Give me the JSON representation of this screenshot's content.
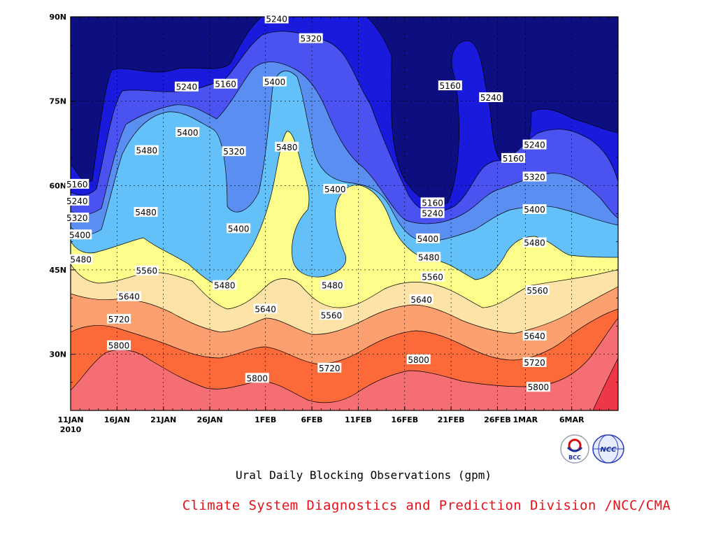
{
  "chart_data": {
    "type": "heatmap",
    "title": "Ural Daily Blocking Observations (gpm)",
    "credit": "Climate System Diagnostics and Prediction Division /NCC/CMA",
    "x_axis": {
      "start": "2010-01-11",
      "end": "2010-03-11",
      "tick_labels": [
        "11JAN\n2010",
        "16JAN",
        "21JAN",
        "26JAN",
        "1FEB",
        "6FEB",
        "11FEB",
        "16FEB",
        "21FEB",
        "26FEB",
        "1MAR",
        "6MAR"
      ],
      "tick_days": [
        0,
        5,
        10,
        15,
        21,
        26,
        31,
        36,
        41,
        46,
        49,
        54
      ]
    },
    "y_axis": {
      "range": [
        20,
        90
      ],
      "unit": "latitude",
      "tick_values": [
        30,
        45,
        60,
        75,
        90
      ],
      "tick_labels": [
        "30N",
        "45N",
        "60N",
        "75N",
        "90N"
      ]
    },
    "grid": true,
    "contour_levels": [
      5160,
      5240,
      5320,
      5400,
      5480,
      5560,
      5640,
      5720,
      5800
    ],
    "colors": [
      "#0d0f80",
      "#1a1adc",
      "#4a52f0",
      "#5a8ef0",
      "#63c0f8",
      "#fdfd8c",
      "#fde3a8",
      "#fda070",
      "#fd6a3a",
      "#f56e74",
      "#ee3848"
    ],
    "contour_labels": [
      {
        "text": "5160",
        "day": 0.7,
        "lat": 60.3
      },
      {
        "text": "5240",
        "day": 0.7,
        "lat": 57.3
      },
      {
        "text": "5320",
        "day": 0.7,
        "lat": 54.3
      },
      {
        "text": "5400",
        "day": 1.0,
        "lat": 51.3
      },
      {
        "text": "5480",
        "day": 1.1,
        "lat": 46.9
      },
      {
        "text": "5560",
        "day": 8.2,
        "lat": 44.9
      },
      {
        "text": "5640",
        "day": 6.3,
        "lat": 40.3
      },
      {
        "text": "5720",
        "day": 5.2,
        "lat": 36.3
      },
      {
        "text": "5800",
        "day": 5.2,
        "lat": 31.6
      },
      {
        "text": "5480",
        "day": 8.2,
        "lat": 66.3
      },
      {
        "text": "5480",
        "day": 8.1,
        "lat": 55.3
      },
      {
        "text": "5400",
        "day": 12.6,
        "lat": 69.5
      },
      {
        "text": "5240",
        "day": 12.5,
        "lat": 77.6
      },
      {
        "text": "5160",
        "day": 16.7,
        "lat": 78.1
      },
      {
        "text": "5320",
        "day": 17.6,
        "lat": 66.1
      },
      {
        "text": "5400",
        "day": 18.1,
        "lat": 52.4
      },
      {
        "text": "5480",
        "day": 16.6,
        "lat": 42.3
      },
      {
        "text": "5640",
        "day": 21.0,
        "lat": 38.1
      },
      {
        "text": "5800",
        "day": 20.1,
        "lat": 25.8
      },
      {
        "text": "5240",
        "day": 22.2,
        "lat": 89.7
      },
      {
        "text": "5320",
        "day": 25.9,
        "lat": 86.2
      },
      {
        "text": "5400",
        "day": 22.0,
        "lat": 78.5
      },
      {
        "text": "5480",
        "day": 23.3,
        "lat": 66.9
      },
      {
        "text": "5400",
        "day": 28.5,
        "lat": 59.4
      },
      {
        "text": "5480",
        "day": 28.2,
        "lat": 42.3
      },
      {
        "text": "5560",
        "day": 28.1,
        "lat": 37.0
      },
      {
        "text": "5720",
        "day": 27.9,
        "lat": 27.6
      },
      {
        "text": "5640",
        "day": 37.8,
        "lat": 39.8
      },
      {
        "text": "5800",
        "day": 37.5,
        "lat": 29.1
      },
      {
        "text": "5160",
        "day": 40.9,
        "lat": 77.8
      },
      {
        "text": "5160",
        "day": 39.0,
        "lat": 57.0
      },
      {
        "text": "5240",
        "day": 39.0,
        "lat": 55.1
      },
      {
        "text": "5400",
        "day": 38.5,
        "lat": 50.6
      },
      {
        "text": "5480",
        "day": 38.6,
        "lat": 47.3
      },
      {
        "text": "5560",
        "day": 39.0,
        "lat": 43.8
      },
      {
        "text": "5240",
        "day": 45.3,
        "lat": 75.7
      },
      {
        "text": "5160",
        "day": 47.7,
        "lat": 64.9
      },
      {
        "text": "5240",
        "day": 50.0,
        "lat": 67.3
      },
      {
        "text": "5320",
        "day": 50.0,
        "lat": 61.6
      },
      {
        "text": "5400",
        "day": 50.0,
        "lat": 55.8
      },
      {
        "text": "5480",
        "day": 50.0,
        "lat": 49.9
      },
      {
        "text": "5560",
        "day": 50.3,
        "lat": 41.4
      },
      {
        "text": "5640",
        "day": 50.0,
        "lat": 33.3
      },
      {
        "text": "5720",
        "day": 50.0,
        "lat": 28.6
      },
      {
        "text": "5800",
        "day": 50.4,
        "lat": 24.2
      }
    ]
  },
  "logos": {
    "left": {
      "text": "BCC",
      "name": "bcc-logo"
    },
    "right": {
      "text": "NCC",
      "name": "ncc-logo"
    }
  }
}
